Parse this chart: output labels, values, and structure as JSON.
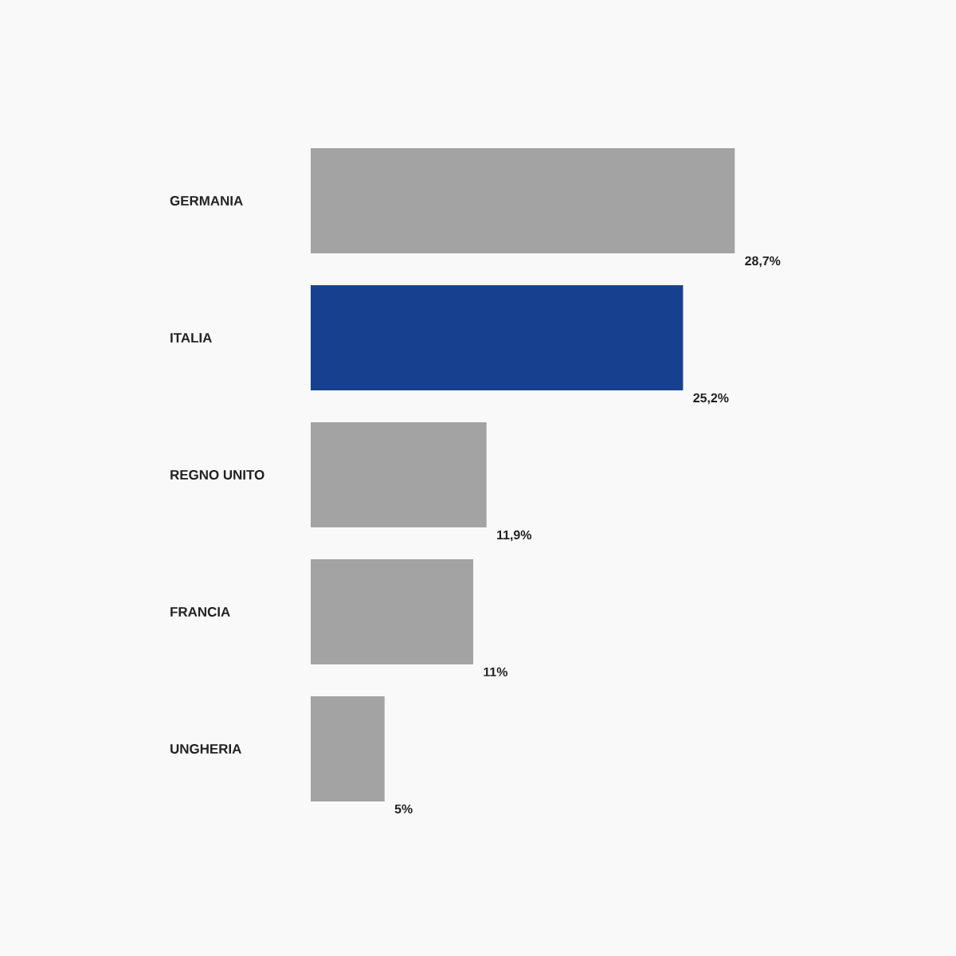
{
  "chart_data": {
    "type": "bar",
    "orientation": "horizontal",
    "categories": [
      "GERMANIA",
      "ITALIA",
      "REGNO UNITO",
      "FRANCIA",
      "UNGHERIA"
    ],
    "values": [
      28.7,
      25.2,
      11.9,
      11,
      5
    ],
    "value_labels": [
      "28,7%",
      "25,2%",
      "11,9%",
      "11%",
      "5%"
    ],
    "colors": [
      "#a3a3a3",
      "#17418f",
      "#a3a3a3",
      "#a3a3a3",
      "#a3a3a3"
    ]
  }
}
